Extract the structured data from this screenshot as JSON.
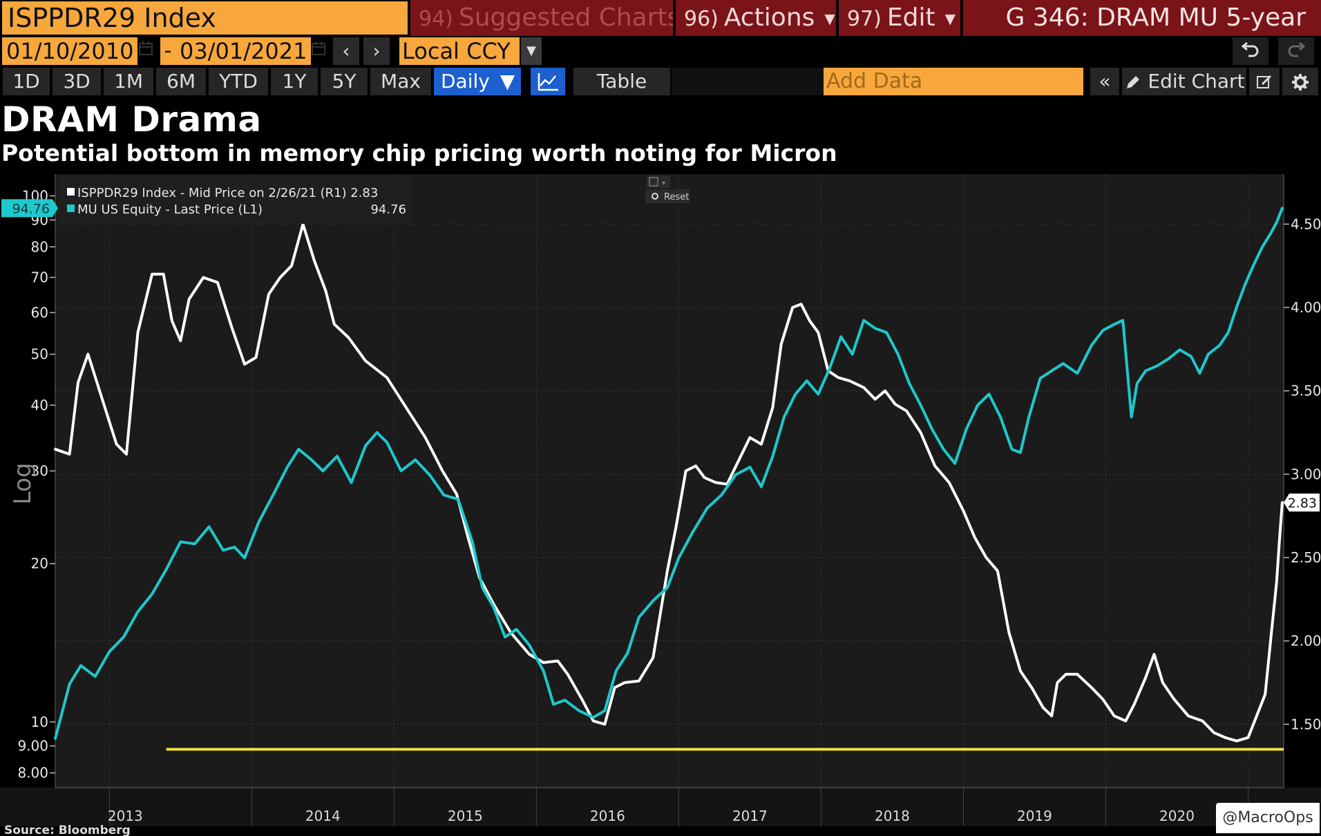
{
  "header": {
    "security": "ISPPDR29 Index",
    "suggested_num": "94)",
    "suggested_label": "Suggested Charts",
    "actions_num": "96)",
    "actions_label": "Actions",
    "edit_num": "97)",
    "edit_label": "Edit",
    "chart_title": "G 346: DRAM MU 5-year"
  },
  "toolbar": {
    "start_date": "01/10/2010",
    "end_date": "03/01/2021",
    "dash": "-",
    "currency": "Local CCY",
    "periods": [
      "1D",
      "3D",
      "1M",
      "6M",
      "YTD",
      "1Y",
      "5Y",
      "Max"
    ],
    "frequency": "Daily",
    "frequency_caret": "▼",
    "table_label": "Table",
    "add_data_placeholder": "Add Data",
    "collapse_icon": "«",
    "edit_chart_label": "Edit Chart",
    "prev_icon": "‹",
    "next_icon": "›"
  },
  "colors": {
    "accent_orange": "#f7a73c",
    "header_red": "#7a1419",
    "active_blue": "#1c5fcf",
    "series_white": "#ffffff",
    "series_teal": "#1ec8cc",
    "threshold_yellow": "#f2e235"
  },
  "titles": {
    "main": "DRAM Drama",
    "subtitle": "Potential bottom in memory chip pricing worth noting for Micron"
  },
  "chart_data": {
    "type": "line",
    "legend": [
      {
        "text": "ISPPDR29 Index - Mid Price on 2/26/21 (R1) 2.83",
        "color": "#ffffff"
      },
      {
        "text": "MU US Equity - Last Price (L1)",
        "value": "94.76",
        "color": "#1ec8cc"
      }
    ],
    "legend_position": "top-left",
    "reset_label": "Reset",
    "left_axis": {
      "scale": "log",
      "label": "Log",
      "range": [
        7.5,
        110
      ],
      "ticks": [
        {
          "v": 8,
          "t": "8.00"
        },
        {
          "v": 9,
          "t": "9.00"
        },
        {
          "v": 10,
          "t": "10"
        },
        {
          "v": 20,
          "t": "20"
        },
        {
          "v": 30,
          "t": "30"
        },
        {
          "v": 40,
          "t": "40"
        },
        {
          "v": 50,
          "t": "50"
        },
        {
          "v": 60,
          "t": "60"
        },
        {
          "v": 70,
          "t": "70"
        },
        {
          "v": 80,
          "t": "80"
        },
        {
          "v": 90,
          "t": "90"
        },
        {
          "v": 100,
          "t": "100"
        }
      ],
      "last_value_label": "94.76"
    },
    "right_axis": {
      "scale": "linear",
      "range": [
        1.12,
        4.8
      ],
      "ticks": [
        {
          "v": 1.5,
          "t": "1.50"
        },
        {
          "v": 2.0,
          "t": "2.00"
        },
        {
          "v": 2.5,
          "t": "2.50"
        },
        {
          "v": 3.0,
          "t": "3.00"
        },
        {
          "v": 3.5,
          "t": "3.50"
        },
        {
          "v": 4.0,
          "t": "4.00"
        },
        {
          "v": 4.5,
          "t": "4.50"
        }
      ],
      "last_value_label": "2.83"
    },
    "x_axis": {
      "range": [
        2012.62,
        2021.25
      ],
      "tick_labels": [
        "2013",
        "2014",
        "2015",
        "2016",
        "2017",
        "2018",
        "2019",
        "2020"
      ],
      "gridlines": [
        2013.0,
        2014.0,
        2015.0,
        2016.0,
        2017.0,
        2018.0,
        2019.0,
        2020.0,
        2021.0
      ]
    },
    "threshold": {
      "axis": "right",
      "value": 1.35,
      "x_start": 2013.4,
      "x_end": 2021.25
    },
    "series": [
      {
        "name": "ISPPDR29 Index - Mid Price (R1)",
        "axis": "right",
        "color": "#ffffff",
        "points": [
          [
            2012.62,
            3.15
          ],
          [
            2012.72,
            3.12
          ],
          [
            2012.78,
            3.55
          ],
          [
            2012.85,
            3.72
          ],
          [
            2012.95,
            3.45
          ],
          [
            2013.05,
            3.18
          ],
          [
            2013.12,
            3.12
          ],
          [
            2013.2,
            3.85
          ],
          [
            2013.3,
            4.2
          ],
          [
            2013.38,
            4.2
          ],
          [
            2013.44,
            3.92
          ],
          [
            2013.5,
            3.8
          ],
          [
            2013.56,
            4.05
          ],
          [
            2013.66,
            4.18
          ],
          [
            2013.76,
            4.15
          ],
          [
            2013.86,
            3.88
          ],
          [
            2013.95,
            3.66
          ],
          [
            2014.03,
            3.7
          ],
          [
            2014.12,
            4.08
          ],
          [
            2014.2,
            4.18
          ],
          [
            2014.28,
            4.25
          ],
          [
            2014.36,
            4.5
          ],
          [
            2014.44,
            4.28
          ],
          [
            2014.52,
            4.1
          ],
          [
            2014.58,
            3.9
          ],
          [
            2014.68,
            3.82
          ],
          [
            2014.8,
            3.68
          ],
          [
            2014.95,
            3.58
          ],
          [
            2015.1,
            3.38
          ],
          [
            2015.22,
            3.22
          ],
          [
            2015.34,
            3.02
          ],
          [
            2015.44,
            2.88
          ],
          [
            2015.52,
            2.62
          ],
          [
            2015.6,
            2.38
          ],
          [
            2015.7,
            2.22
          ],
          [
            2015.82,
            2.05
          ],
          [
            2015.95,
            1.92
          ],
          [
            2016.05,
            1.87
          ],
          [
            2016.15,
            1.88
          ],
          [
            2016.22,
            1.8
          ],
          [
            2016.32,
            1.65
          ],
          [
            2016.4,
            1.52
          ],
          [
            2016.48,
            1.5
          ],
          [
            2016.55,
            1.72
          ],
          [
            2016.62,
            1.75
          ],
          [
            2016.72,
            1.76
          ],
          [
            2016.82,
            1.9
          ],
          [
            2016.92,
            2.42
          ],
          [
            2016.98,
            2.68
          ],
          [
            2017.05,
            3.02
          ],
          [
            2017.12,
            3.05
          ],
          [
            2017.18,
            2.98
          ],
          [
            2017.26,
            2.95
          ],
          [
            2017.34,
            2.94
          ],
          [
            2017.42,
            3.08
          ],
          [
            2017.5,
            3.22
          ],
          [
            2017.58,
            3.18
          ],
          [
            2017.66,
            3.4
          ],
          [
            2017.72,
            3.78
          ],
          [
            2017.8,
            4.0
          ],
          [
            2017.86,
            4.02
          ],
          [
            2017.92,
            3.92
          ],
          [
            2017.98,
            3.85
          ],
          [
            2018.05,
            3.62
          ],
          [
            2018.12,
            3.58
          ],
          [
            2018.2,
            3.56
          ],
          [
            2018.3,
            3.52
          ],
          [
            2018.38,
            3.45
          ],
          [
            2018.45,
            3.5
          ],
          [
            2018.52,
            3.42
          ],
          [
            2018.6,
            3.38
          ],
          [
            2018.7,
            3.25
          ],
          [
            2018.8,
            3.05
          ],
          [
            2018.9,
            2.95
          ],
          [
            2019.0,
            2.78
          ],
          [
            2019.08,
            2.62
          ],
          [
            2019.16,
            2.5
          ],
          [
            2019.24,
            2.42
          ],
          [
            2019.32,
            2.05
          ],
          [
            2019.4,
            1.82
          ],
          [
            2019.48,
            1.72
          ],
          [
            2019.56,
            1.6
          ],
          [
            2019.62,
            1.55
          ],
          [
            2019.66,
            1.75
          ],
          [
            2019.72,
            1.8
          ],
          [
            2019.8,
            1.8
          ],
          [
            2019.9,
            1.72
          ],
          [
            2019.98,
            1.65
          ],
          [
            2020.06,
            1.55
          ],
          [
            2020.14,
            1.52
          ],
          [
            2020.2,
            1.62
          ],
          [
            2020.28,
            1.78
          ],
          [
            2020.34,
            1.92
          ],
          [
            2020.4,
            1.75
          ],
          [
            2020.48,
            1.65
          ],
          [
            2020.58,
            1.55
          ],
          [
            2020.68,
            1.52
          ],
          [
            2020.76,
            1.45
          ],
          [
            2020.84,
            1.42
          ],
          [
            2020.92,
            1.4
          ],
          [
            2021.0,
            1.42
          ],
          [
            2021.06,
            1.55
          ],
          [
            2021.12,
            1.68
          ],
          [
            2021.16,
            2.02
          ],
          [
            2021.2,
            2.35
          ],
          [
            2021.22,
            2.6
          ],
          [
            2021.24,
            2.83
          ]
        ]
      },
      {
        "name": "MU US Equity - Last Price (L1)",
        "axis": "left",
        "color": "#1ec8cc",
        "points": [
          [
            2012.62,
            9.3
          ],
          [
            2012.72,
            11.8
          ],
          [
            2012.8,
            12.8
          ],
          [
            2012.9,
            12.2
          ],
          [
            2013.0,
            13.6
          ],
          [
            2013.1,
            14.5
          ],
          [
            2013.2,
            16.2
          ],
          [
            2013.3,
            17.5
          ],
          [
            2013.4,
            19.5
          ],
          [
            2013.5,
            22.0
          ],
          [
            2013.6,
            21.8
          ],
          [
            2013.7,
            23.5
          ],
          [
            2013.8,
            21.2
          ],
          [
            2013.88,
            21.5
          ],
          [
            2013.95,
            20.5
          ],
          [
            2014.05,
            24.0
          ],
          [
            2014.15,
            27.0
          ],
          [
            2014.25,
            30.5
          ],
          [
            2014.33,
            33.0
          ],
          [
            2014.42,
            31.5
          ],
          [
            2014.5,
            30.0
          ],
          [
            2014.6,
            32.0
          ],
          [
            2014.7,
            28.5
          ],
          [
            2014.8,
            33.5
          ],
          [
            2014.88,
            35.5
          ],
          [
            2014.95,
            34.0
          ],
          [
            2015.05,
            30.0
          ],
          [
            2015.15,
            31.5
          ],
          [
            2015.25,
            29.5
          ],
          [
            2015.35,
            27.0
          ],
          [
            2015.45,
            26.5
          ],
          [
            2015.55,
            22.0
          ],
          [
            2015.62,
            18.0
          ],
          [
            2015.7,
            16.5
          ],
          [
            2015.78,
            14.5
          ],
          [
            2015.86,
            15.0
          ],
          [
            2015.95,
            14.0
          ],
          [
            2016.05,
            12.5
          ],
          [
            2016.12,
            10.8
          ],
          [
            2016.2,
            11.0
          ],
          [
            2016.3,
            10.5
          ],
          [
            2016.4,
            10.2
          ],
          [
            2016.48,
            10.5
          ],
          [
            2016.56,
            12.5
          ],
          [
            2016.64,
            13.5
          ],
          [
            2016.72,
            15.8
          ],
          [
            2016.82,
            17.0
          ],
          [
            2016.92,
            18.0
          ],
          [
            2017.0,
            20.5
          ],
          [
            2017.1,
            23.0
          ],
          [
            2017.2,
            25.5
          ],
          [
            2017.3,
            27.0
          ],
          [
            2017.4,
            29.5
          ],
          [
            2017.5,
            30.5
          ],
          [
            2017.58,
            28.0
          ],
          [
            2017.66,
            32.0
          ],
          [
            2017.74,
            38.0
          ],
          [
            2017.82,
            42.0
          ],
          [
            2017.9,
            44.5
          ],
          [
            2017.98,
            42.0
          ],
          [
            2018.06,
            47.0
          ],
          [
            2018.14,
            54.0
          ],
          [
            2018.22,
            50.0
          ],
          [
            2018.3,
            58.0
          ],
          [
            2018.38,
            56.0
          ],
          [
            2018.46,
            55.0
          ],
          [
            2018.54,
            50.0
          ],
          [
            2018.62,
            44.0
          ],
          [
            2018.7,
            40.0
          ],
          [
            2018.78,
            36.0
          ],
          [
            2018.86,
            33.0
          ],
          [
            2018.94,
            31.0
          ],
          [
            2019.02,
            36.0
          ],
          [
            2019.1,
            40.0
          ],
          [
            2019.18,
            42.0
          ],
          [
            2019.26,
            38.0
          ],
          [
            2019.34,
            33.0
          ],
          [
            2019.4,
            32.5
          ],
          [
            2019.46,
            38.0
          ],
          [
            2019.54,
            45.0
          ],
          [
            2019.62,
            46.5
          ],
          [
            2019.7,
            48.0
          ],
          [
            2019.8,
            46.0
          ],
          [
            2019.9,
            52.0
          ],
          [
            2019.98,
            55.5
          ],
          [
            2020.06,
            57.0
          ],
          [
            2020.12,
            58.0
          ],
          [
            2020.18,
            38.0
          ],
          [
            2020.22,
            44.0
          ],
          [
            2020.28,
            46.5
          ],
          [
            2020.36,
            47.5
          ],
          [
            2020.44,
            49.0
          ],
          [
            2020.52,
            51.0
          ],
          [
            2020.6,
            49.5
          ],
          [
            2020.66,
            46.0
          ],
          [
            2020.72,
            50.0
          ],
          [
            2020.8,
            52.0
          ],
          [
            2020.86,
            55.0
          ],
          [
            2020.92,
            61.5
          ],
          [
            2020.98,
            68.0
          ],
          [
            2021.04,
            74.0
          ],
          [
            2021.1,
            80.0
          ],
          [
            2021.16,
            85.0
          ],
          [
            2021.2,
            89.0
          ],
          [
            2021.24,
            94.76
          ]
        ]
      }
    ]
  },
  "footer": {
    "source": "Source: Bloomberg",
    "watermark": "@MacroOps"
  }
}
